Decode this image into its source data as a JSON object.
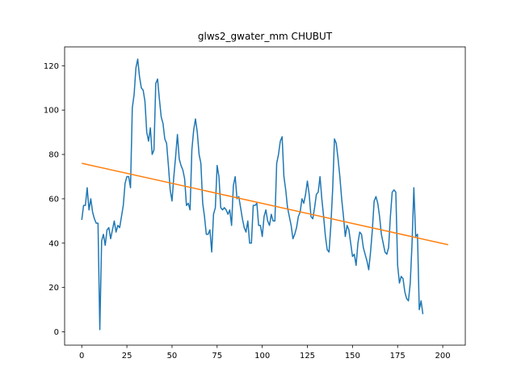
{
  "chart_data": {
    "type": "line",
    "title": "glws2_gwater_mm CHUBUT",
    "xlabel": "",
    "ylabel": "",
    "xlim": [
      -9.5,
      212.5
    ],
    "ylim": [
      -6,
      128.5
    ],
    "xticks": [
      0,
      25,
      50,
      75,
      100,
      125,
      150,
      175,
      200
    ],
    "yticks": [
      0,
      20,
      40,
      60,
      80,
      100,
      120
    ],
    "grid": false,
    "series": [
      {
        "color": "#1f77b4",
        "x_start": 0,
        "x_step": 1,
        "values": [
          50.5,
          57,
          57,
          65,
          55,
          60,
          54,
          51,
          49,
          49,
          1,
          41,
          44,
          39,
          46,
          47,
          42,
          46,
          50,
          45,
          48,
          47,
          52,
          57,
          67,
          70,
          70,
          65,
          101,
          107,
          119,
          123,
          115,
          110,
          109,
          104,
          90,
          86,
          92,
          80,
          82,
          112,
          114,
          105,
          97,
          94,
          87,
          85,
          75,
          64,
          59,
          70,
          79,
          89,
          78,
          75,
          73,
          69,
          57,
          58,
          55,
          82,
          91,
          96,
          90,
          80,
          76,
          58,
          52,
          44,
          44,
          46,
          36,
          53,
          56,
          75,
          70,
          56,
          55,
          56,
          55,
          53,
          55,
          48,
          66,
          70,
          60,
          61,
          56,
          51,
          47,
          45,
          50,
          40,
          40,
          57,
          57,
          58,
          48,
          48,
          43,
          52,
          55,
          50,
          48,
          53,
          50,
          50,
          76,
          80,
          86,
          88,
          70,
          64,
          56,
          52,
          48,
          42,
          44,
          47,
          52,
          54,
          60,
          58,
          62,
          68,
          62,
          52,
          51,
          56,
          62,
          63,
          70,
          60,
          52,
          43,
          37,
          36,
          48,
          64,
          87,
          85,
          78,
          70,
          60,
          52,
          43,
          48,
          46,
          40,
          34,
          35,
          30,
          40,
          45,
          44,
          38,
          35,
          32,
          28,
          36,
          46,
          59,
          61,
          58,
          52,
          44,
          40,
          36,
          35,
          38,
          52,
          63,
          64,
          63,
          30,
          22,
          25,
          24,
          18,
          15,
          14,
          22,
          40,
          65,
          43,
          44,
          10,
          14,
          8
        ]
      },
      {
        "color": "#ff7f0e",
        "x": [
          0,
          203
        ],
        "values": [
          76,
          39.3
        ]
      }
    ]
  }
}
